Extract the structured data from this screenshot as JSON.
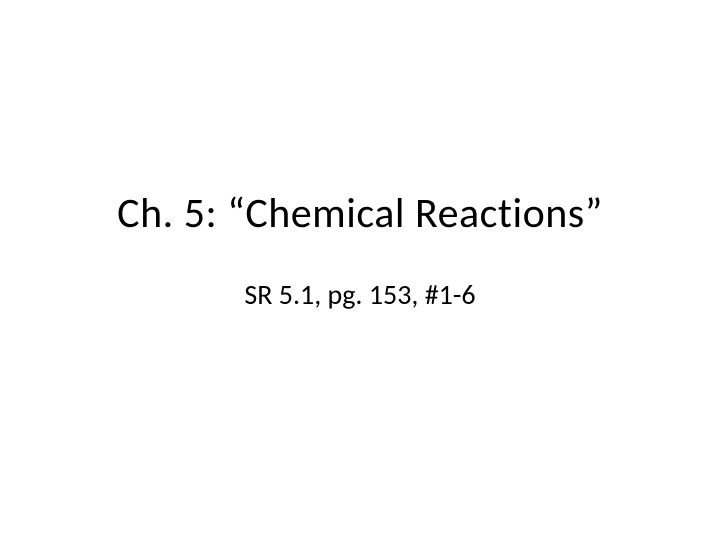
{
  "slide": {
    "title": "Ch. 5:  “Chemical Reactions”",
    "subtitle": "SR 5.1, pg. 153, #1-6",
    "background_color": "#ffffff",
    "title_fontsize": 42,
    "title_color": "#000000",
    "subtitle_fontsize": 28,
    "subtitle_color": "#000000",
    "font_family": "Calibri"
  }
}
